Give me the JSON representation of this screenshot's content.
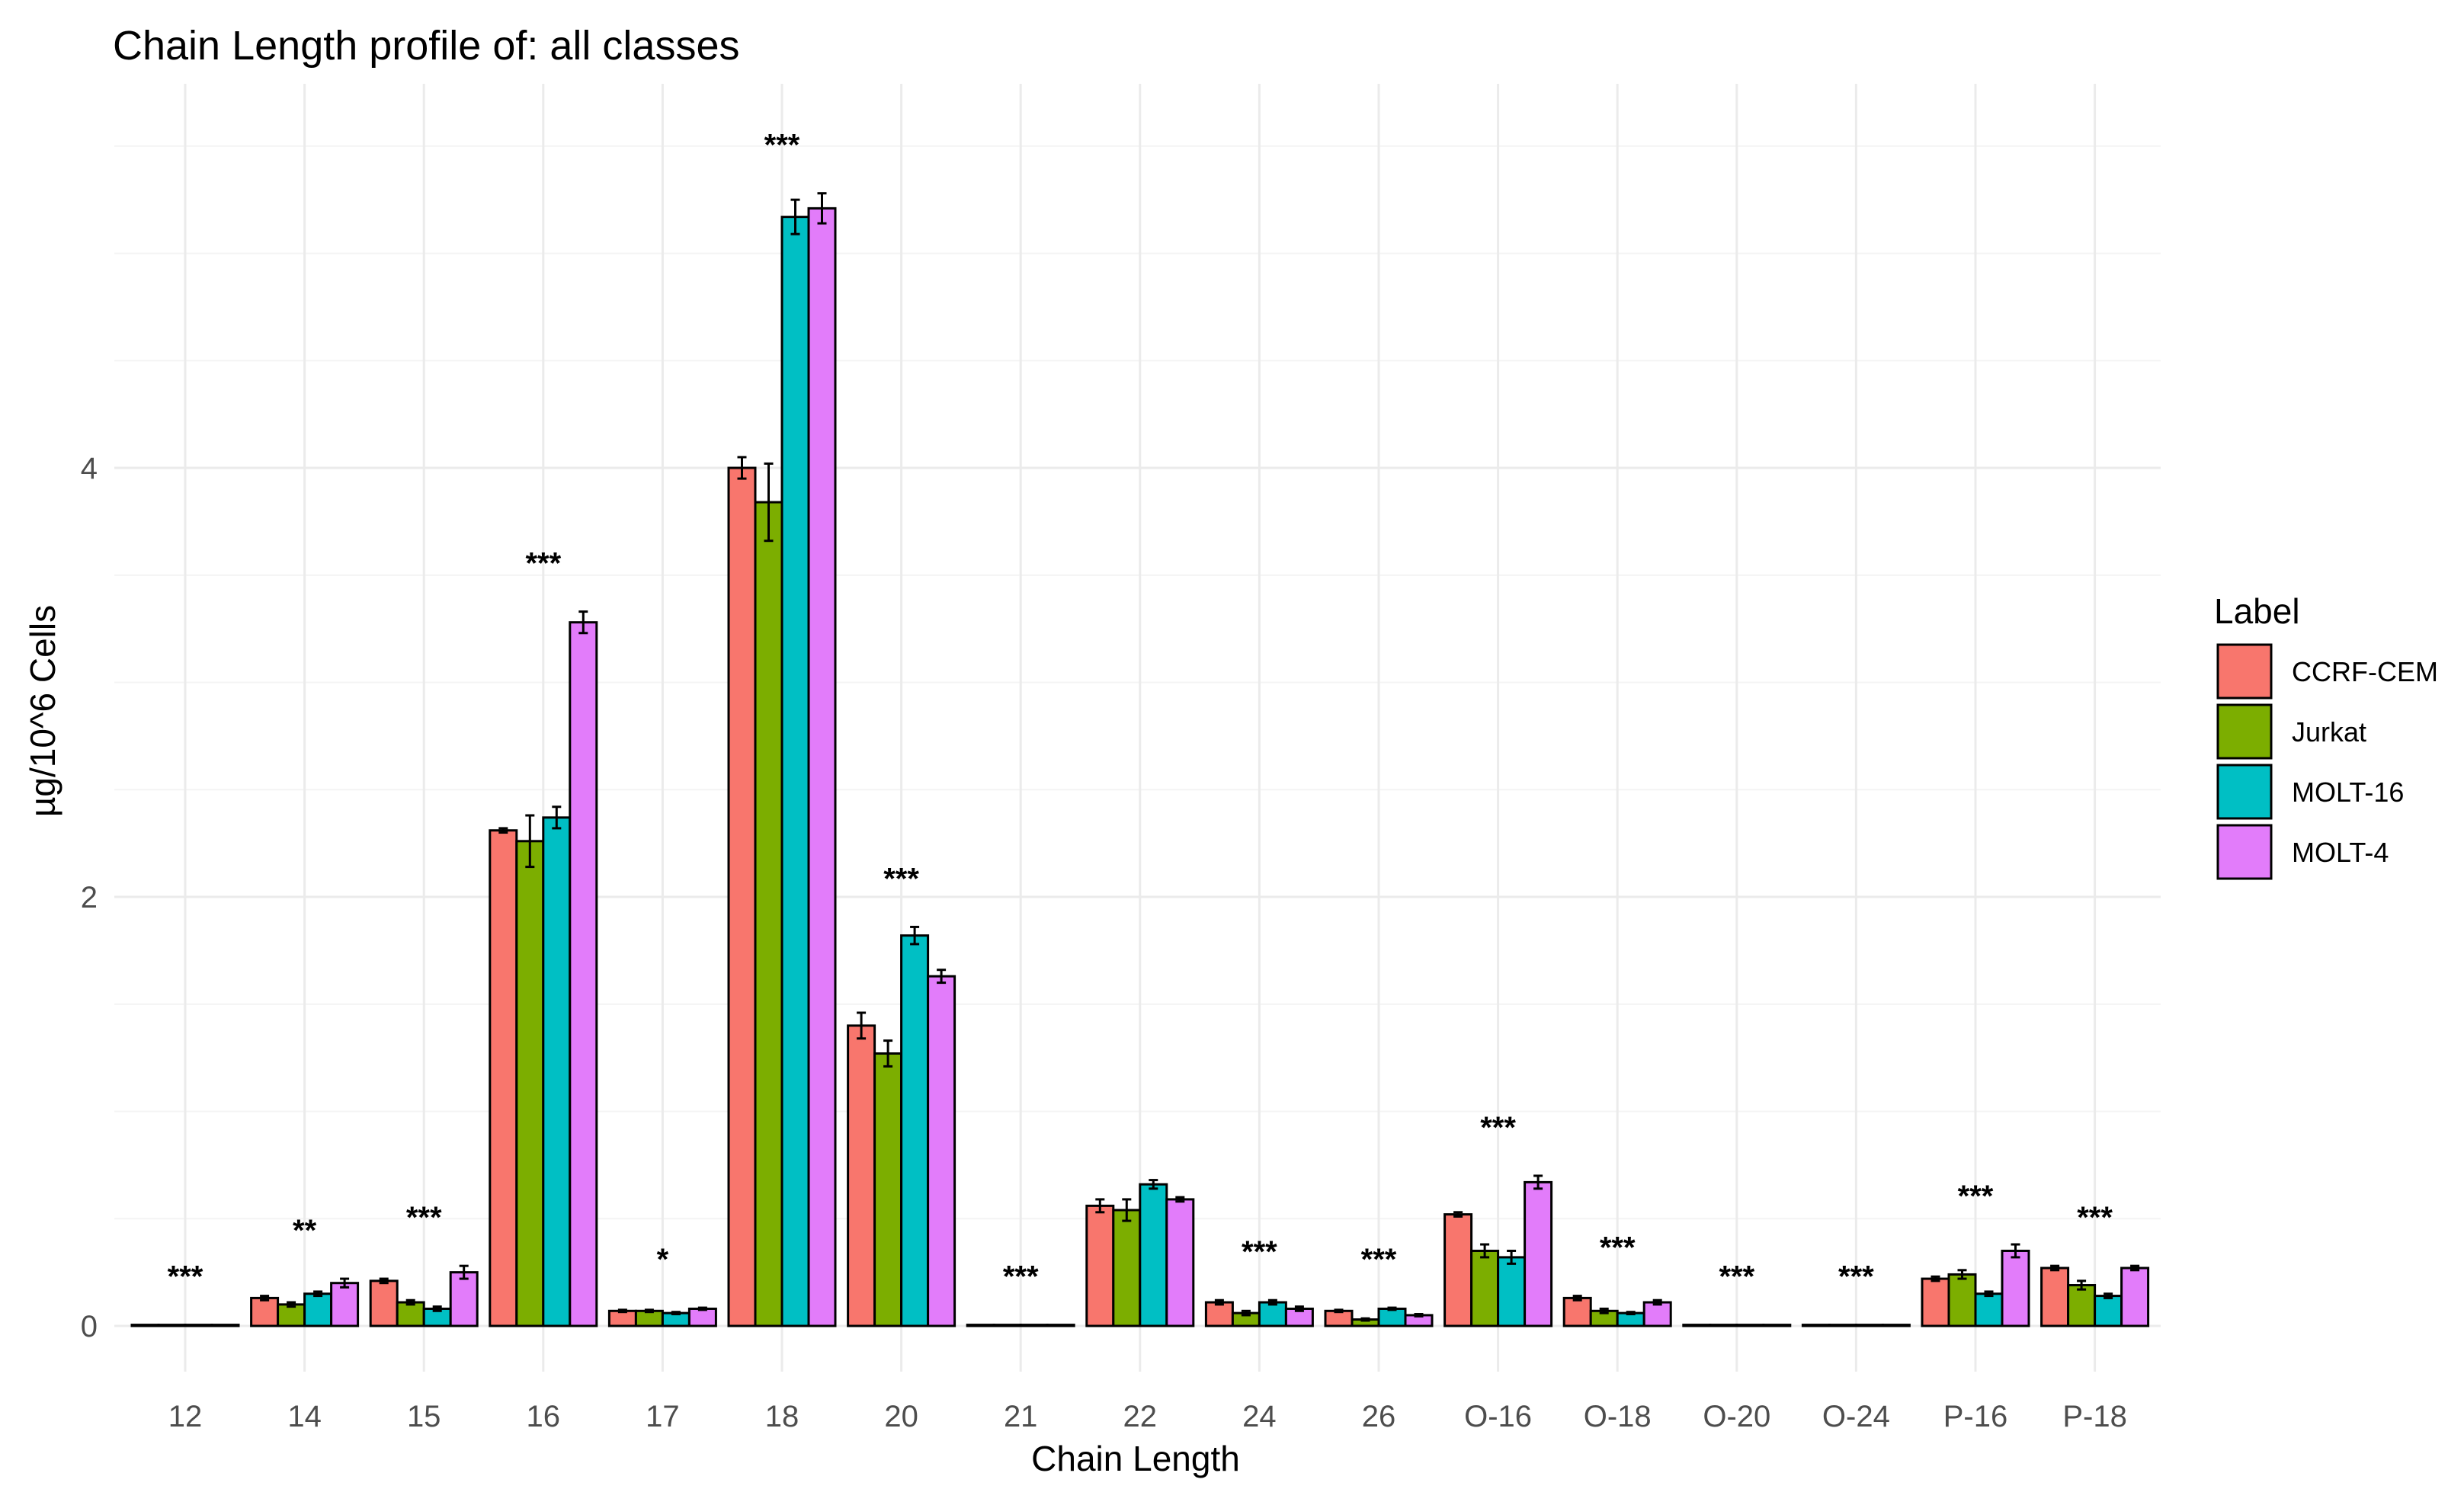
{
  "chart_data": {
    "type": "bar",
    "title": "Chain Length profile of: all classes",
    "xlabel": "Chain Length",
    "ylabel": "µg/10^6 Cells",
    "ylim": [
      -0.2,
      5.8
    ],
    "yticks": [
      0,
      2,
      4
    ],
    "grid": true,
    "legend_title": "Label",
    "legend_position": "right",
    "categories": [
      "12",
      "14",
      "15",
      "16",
      "17",
      "18",
      "20",
      "21",
      "22",
      "24",
      "26",
      "O-16",
      "O-18",
      "O-20",
      "O-24",
      "P-16",
      "P-18"
    ],
    "significance": [
      "***",
      "**",
      "***",
      "***",
      "*",
      "***",
      "***",
      "***",
      "",
      "***",
      "***",
      "***",
      "***",
      "***",
      "***",
      "***",
      "***"
    ],
    "series": [
      {
        "name": "CCRF-CEM",
        "color": "#F8766D",
        "values": [
          0.005,
          0.13,
          0.21,
          2.31,
          0.07,
          4.0,
          1.4,
          0.005,
          0.56,
          0.11,
          0.07,
          0.52,
          0.13,
          0.005,
          0.005,
          0.22,
          0.27
        ],
        "errors": [
          0,
          0.01,
          0.01,
          0.01,
          0.005,
          0.05,
          0.06,
          0,
          0.03,
          0.01,
          0.005,
          0.01,
          0.01,
          0,
          0,
          0.01,
          0.01
        ]
      },
      {
        "name": "Jurkat",
        "color": "#7CAE00",
        "values": [
          0.005,
          0.1,
          0.11,
          2.26,
          0.07,
          3.84,
          1.27,
          0.005,
          0.54,
          0.06,
          0.03,
          0.35,
          0.07,
          0.005,
          0.005,
          0.24,
          0.19
        ],
        "errors": [
          0,
          0.01,
          0.01,
          0.12,
          0.005,
          0.18,
          0.06,
          0,
          0.05,
          0.01,
          0.005,
          0.03,
          0.01,
          0,
          0,
          0.02,
          0.02
        ]
      },
      {
        "name": "MOLT-16",
        "color": "#00BFC4",
        "values": [
          0.005,
          0.15,
          0.08,
          2.37,
          0.06,
          5.17,
          1.82,
          0.005,
          0.66,
          0.11,
          0.08,
          0.32,
          0.06,
          0.005,
          0.005,
          0.15,
          0.14
        ],
        "errors": [
          0,
          0.01,
          0.01,
          0.05,
          0.005,
          0.08,
          0.04,
          0,
          0.02,
          0.01,
          0.005,
          0.03,
          0.005,
          0,
          0,
          0.01,
          0.01
        ]
      },
      {
        "name": "MOLT-4",
        "color": "#E27CFA",
        "values": [
          0.005,
          0.2,
          0.25,
          3.28,
          0.08,
          5.21,
          1.63,
          0.005,
          0.59,
          0.08,
          0.05,
          0.67,
          0.11,
          0.005,
          0.005,
          0.35,
          0.27
        ],
        "errors": [
          0,
          0.02,
          0.03,
          0.05,
          0.005,
          0.07,
          0.03,
          0,
          0.01,
          0.01,
          0.005,
          0.03,
          0.01,
          0,
          0,
          0.03,
          0.01
        ]
      }
    ]
  }
}
